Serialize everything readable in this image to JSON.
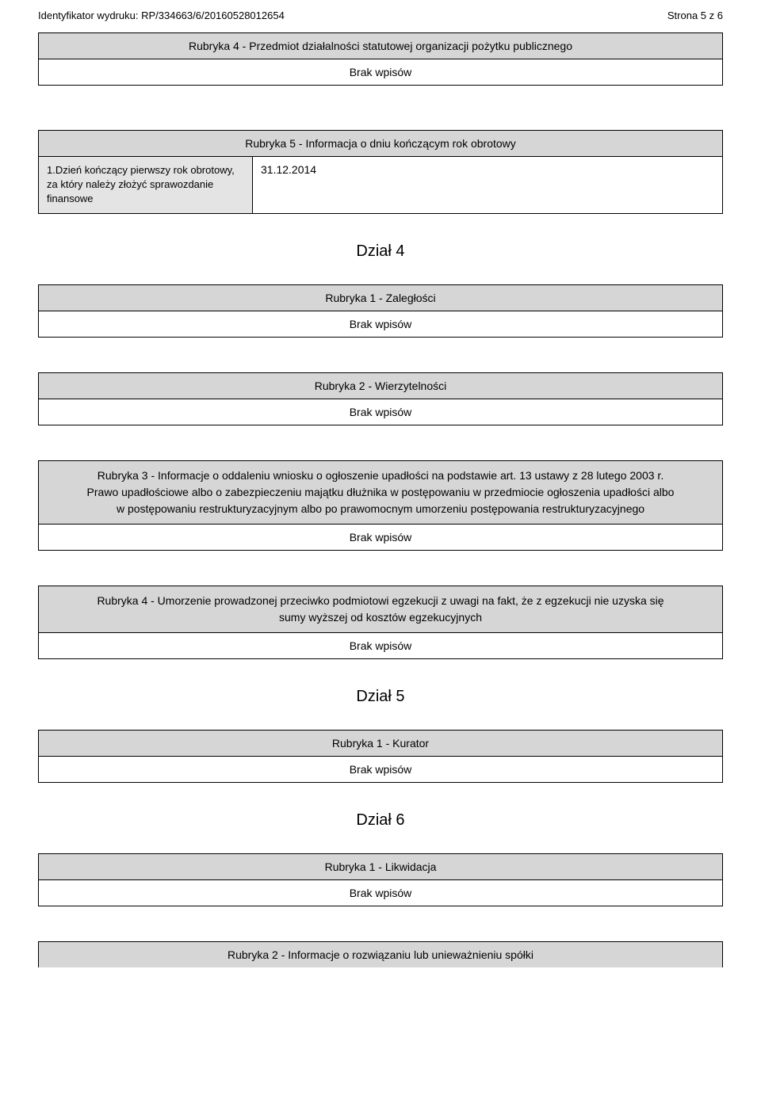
{
  "header": {
    "identifier_label": "Identyfikator wydruku:",
    "identifier_value": "RP/334663/6/20160528012654",
    "page_label": "Strona 5 z 6"
  },
  "rubryka4_top": {
    "title": "Rubryka 4 - Przedmiot działalności statutowej organizacji pożytku publicznego",
    "body": "Brak wpisów"
  },
  "rubryka5": {
    "title": "Rubryka 5 - Informacja o dniu kończącym rok obrotowy",
    "field_label": "1.Dzień kończący pierwszy rok obrotowy, za który należy złożyć sprawozdanie finansowe",
    "field_value": "31.12.2014"
  },
  "dzial4": {
    "title": "Dział 4"
  },
  "d4_r1": {
    "title": "Rubryka 1 - Zaległości",
    "body": "Brak wpisów"
  },
  "d4_r2": {
    "title": "Rubryka 2 - Wierzytelności",
    "body": "Brak wpisów"
  },
  "d4_r3": {
    "title_l1": "Rubryka 3 - Informacje o oddaleniu wniosku o ogłoszenie upadłości na podstawie art. 13 ustawy z 28 lutego 2003 r.",
    "title_l2": "Prawo upadłościowe albo o zabezpieczeniu majątku dłużnika w postępowaniu w przedmiocie ogłoszenia upadłości albo",
    "title_l3": "w postępowaniu restrukturyzacyjnym albo po prawomocnym umorzeniu postępowania restrukturyzacyjnego",
    "body": "Brak wpisów"
  },
  "d4_r4": {
    "title_l1": "Rubryka 4 - Umorzenie prowadzonej przeciwko podmiotowi egzekucji z uwagi na fakt, że z egzekucji nie uzyska się",
    "title_l2": "sumy wyższej od kosztów egzekucyjnych",
    "body": "Brak wpisów"
  },
  "dzial5": {
    "title": "Dział 5"
  },
  "d5_r1": {
    "title": "Rubryka 1 - Kurator",
    "body": "Brak wpisów"
  },
  "dzial6": {
    "title": "Dział 6"
  },
  "d6_r1": {
    "title": "Rubryka 1 - Likwidacja",
    "body": "Brak wpisów"
  },
  "d6_r2": {
    "title": "Rubryka 2 - Informacje o rozwiązaniu lub unieważnieniu spółki"
  }
}
